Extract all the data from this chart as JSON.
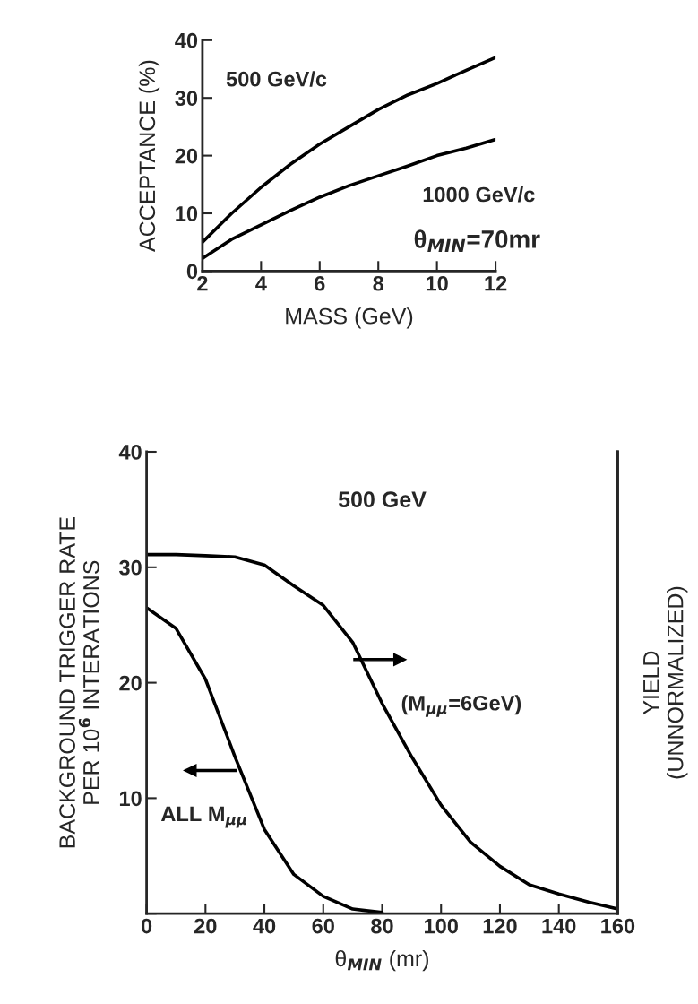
{
  "chart_data": [
    {
      "type": "line",
      "xlabel": "MASS (GeV)",
      "ylabel": "ACCEPTANCE (%)",
      "x": [
        2,
        3,
        4,
        5,
        6,
        7,
        8,
        9,
        10,
        11,
        12
      ],
      "series": [
        {
          "name": "500 GeV/c",
          "color": "#000000",
          "values": [
            5,
            10,
            14.5,
            18.5,
            22,
            25,
            28,
            30.5,
            32.5,
            34.8,
            37
          ]
        },
        {
          "name": "1000 GeV/c",
          "color": "#000000",
          "values": [
            2.2,
            5.5,
            8,
            10.5,
            12.8,
            14.8,
            16.5,
            18.2,
            20,
            21.3,
            22.8
          ]
        }
      ],
      "xlim": [
        2,
        12
      ],
      "ylim": [
        0,
        40
      ],
      "xticks": [
        2,
        4,
        6,
        8,
        10,
        12
      ],
      "yticks": [
        0,
        10,
        20,
        30,
        40
      ],
      "annotations": [
        "θ$_{MIN}$=70mr"
      ],
      "grid": false,
      "legend": false,
      "marker": "none",
      "line_style": "solid"
    },
    {
      "type": "line",
      "title": "500 GeV",
      "xlabel": "θ$_{MIN}$ (mr)",
      "ylabel": "BACKGROUND TRIGGER RATE\nPER 10$^{6}$ INTERATIONS",
      "y2label": "YIELD\n(UNNORMALIZED)",
      "x": [
        0,
        10,
        20,
        30,
        40,
        50,
        60,
        70,
        80,
        90,
        100,
        110,
        120,
        130,
        140,
        150,
        160
      ],
      "series": [
        {
          "name": "ALL M$_{μμ}$",
          "color": "#000000",
          "x": [
            0,
            10,
            20,
            30,
            40,
            50,
            60,
            70,
            80
          ],
          "values": [
            26.5,
            24.7,
            20.3,
            13.6,
            7.3,
            3.4,
            1.5,
            0.4,
            0.1
          ]
        },
        {
          "name": "(M$_{μμ}$=6GeV)",
          "color": "#000000",
          "values": [
            31.1,
            31.1,
            31.0,
            30.9,
            30.2,
            28.4,
            26.7,
            23.5,
            18.2,
            13.6,
            9.4,
            6.2,
            4.1,
            2.5,
            1.7,
            1.0,
            0.4
          ]
        }
      ],
      "xlim": [
        0,
        160
      ],
      "ylim": [
        0,
        40
      ],
      "xticks": [
        0,
        20,
        40,
        60,
        80,
        100,
        120,
        140,
        160
      ],
      "yticks": [
        {
          "value": 0,
          "label": null
        },
        10,
        20,
        30,
        40
      ],
      "grid": false,
      "legend": false,
      "marker": "none",
      "line_style": "solid"
    }
  ]
}
